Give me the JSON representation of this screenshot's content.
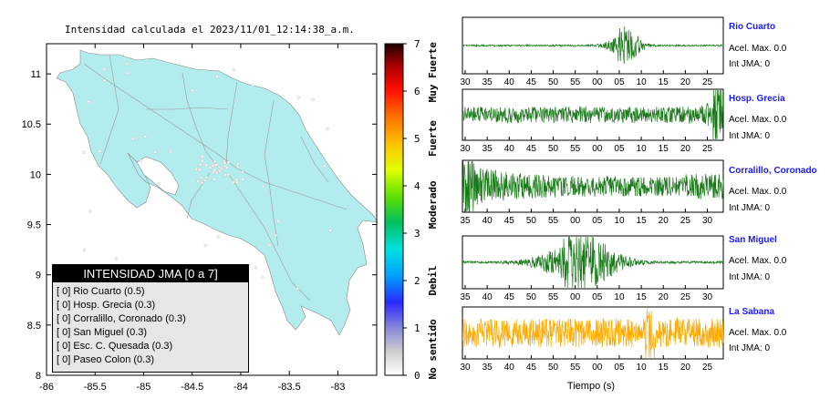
{
  "title": "Intensidad calculada el 2023/11/01_12:14:38_a.m.",
  "map": {
    "x_ticks": [
      "-86",
      "-85.5",
      "-85",
      "-84.5",
      "-84",
      "-83.5",
      "-83"
    ],
    "y_ticks": [
      "11",
      "10.5",
      "10",
      "9.5",
      "9",
      "8.5",
      "8"
    ],
    "land_color": "#b3ecec",
    "xlim": [
      -86,
      -82.6
    ],
    "ylim": [
      8,
      11.3
    ]
  },
  "colorbar": {
    "ticks": [
      "0",
      "1",
      "2",
      "3",
      "4",
      "5",
      "6",
      "7"
    ],
    "category_labels": [
      "No sentido",
      "Debil",
      "Moderado",
      "Fuerte",
      "Muy Fuerte"
    ]
  },
  "legend": {
    "header": "INTENSIDAD JMA [0 a 7]",
    "rows": [
      "[ 0]  Rio Cuarto (0.5)",
      "[ 0]  Hosp. Grecia (0.3)",
      "[ 0]  Corralillo, Coronado (0.3)",
      "[ 0]  San Miguel (0.3)",
      "[ 0]  Esc. C. Quesada (0.3)",
      "[ 0]  Paseo Colon (0.3)"
    ]
  },
  "stations": [
    {
      "name": "Rio Cuarto",
      "acel": "Acel. Max. 0.0",
      "jma": "Int JMA: 0",
      "color": "#1a7a1a",
      "ticks": [
        "30",
        "35",
        "40",
        "45",
        "50",
        "55",
        "00",
        "05",
        "10",
        "15",
        "20",
        "25"
      ]
    },
    {
      "name": "Hosp. Grecia",
      "acel": "Acel. Max. 0.0",
      "jma": "Int JMA: 0",
      "color": "#1a7a1a",
      "ticks": [
        "30",
        "35",
        "40",
        "45",
        "50",
        "55",
        "00",
        "05",
        "10",
        "15",
        "20",
        "25"
      ]
    },
    {
      "name": "Corralillo, Coronado",
      "acel": "Acel. Max. 0.0",
      "jma": "Int JMA: 0",
      "color": "#1a7a1a",
      "ticks": [
        "35",
        "40",
        "45",
        "50",
        "55",
        "00",
        "05",
        "10",
        "15",
        "20",
        "25",
        "30"
      ]
    },
    {
      "name": "San Miguel",
      "acel": "Acel. Max. 0.0",
      "jma": "Int JMA: 0",
      "color": "#1a7a1a",
      "ticks": [
        "35",
        "40",
        "45",
        "50",
        "55",
        "00",
        "05",
        "10",
        "15",
        "20",
        "25",
        "30"
      ]
    },
    {
      "name": "La Sabana",
      "acel": "Acel. Max. 0.0",
      "jma": "Int JMA: 0",
      "color": "#ffaa00",
      "ticks": [
        "30",
        "35",
        "40",
        "45",
        "50",
        "55",
        "00",
        "05",
        "10",
        "15",
        "20",
        "25"
      ]
    }
  ],
  "wave_xlabel": "Tiempo (s)",
  "chart_data": [
    {
      "type": "scatter",
      "title": "Intensidad calculada el 2023/11/01_12:14:38_a.m.",
      "xlabel": "",
      "ylabel": "",
      "xlim": [
        -86,
        -82.6
      ],
      "ylim": [
        8,
        11.3
      ],
      "x_ticks": [
        -86,
        -85.5,
        -85,
        -84.5,
        -84,
        -83.5,
        -83
      ],
      "y_ticks": [
        8,
        8.5,
        9,
        9.5,
        10,
        10.5,
        11
      ],
      "colorbar": {
        "min": 0,
        "max": 7,
        "labels": [
          "No sentido",
          "Debil",
          "Moderado",
          "Fuerte",
          "Muy Fuerte"
        ]
      }
    },
    {
      "type": "line",
      "xlabel": "Tiempo (s)",
      "series_names": [
        "Rio Cuarto",
        "Hosp. Grecia",
        "Corralillo, Coronado",
        "San Miguel",
        "La Sabana"
      ]
    }
  ]
}
